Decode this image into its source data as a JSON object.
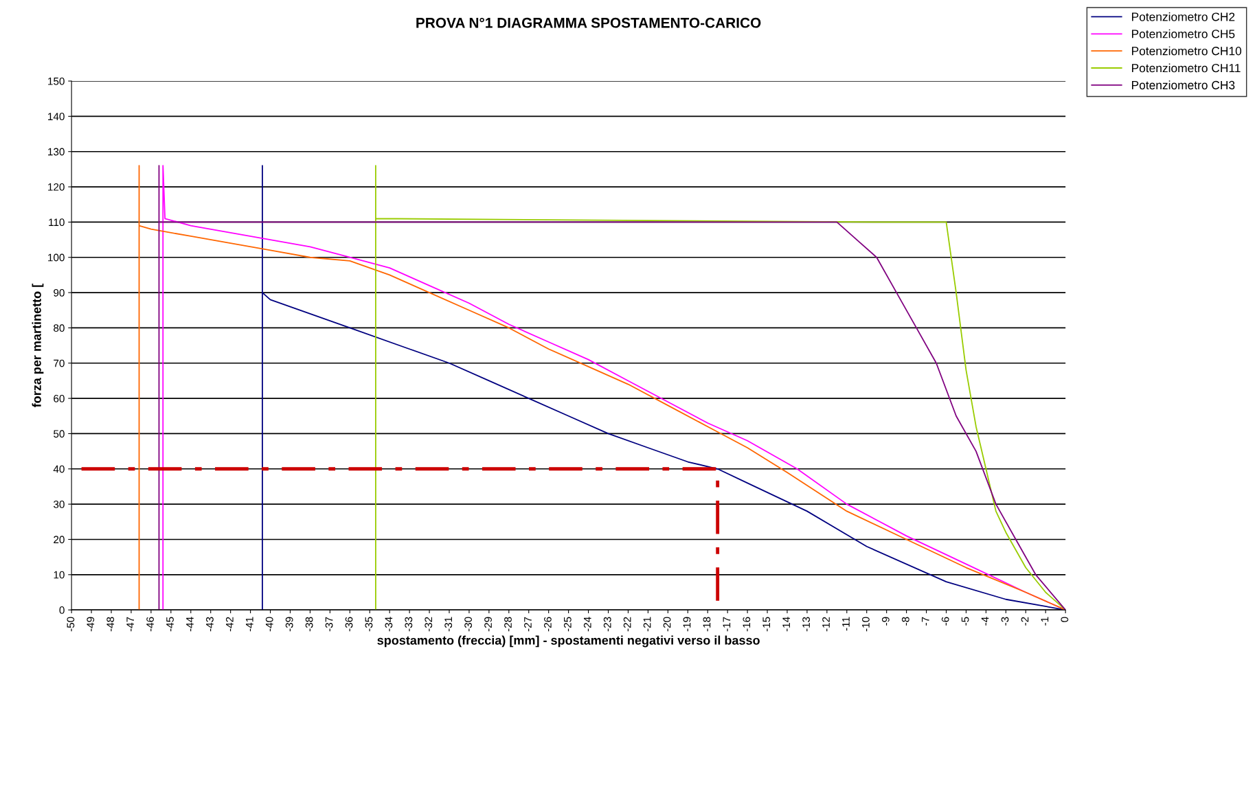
{
  "chart_data": {
    "type": "line",
    "title": "PROVA N°1 DIAGRAMMA SPOSTAMENTO-CARICO",
    "xlabel": "spostamento (freccia) [mm] - spostamenti negativi verso il basso",
    "ylabel": "forza per martinetto [",
    "xlim": [
      -50,
      0
    ],
    "xticks": [
      -50,
      -49,
      -48,
      -47,
      -46,
      -45,
      -44,
      -43,
      -42,
      -41,
      -40,
      -39,
      -38,
      -37,
      -36,
      -35,
      -34,
      -33,
      -32,
      -31,
      -30,
      -29,
      -28,
      -27,
      -26,
      -25,
      -24,
      -23,
      -22,
      -21,
      -20,
      -19,
      -18,
      -17,
      -16,
      -15,
      -14,
      -13,
      -12,
      -11,
      -10,
      -9,
      -8,
      -7,
      -6,
      -5,
      -4,
      -3,
      -2,
      -1,
      0
    ],
    "ylim": [
      0,
      150
    ],
    "yticks": [
      0,
      10,
      20,
      30,
      40,
      50,
      60,
      70,
      80,
      90,
      100,
      110,
      120,
      130,
      140,
      150
    ],
    "grid": "y",
    "legend": "top right",
    "series": [
      {
        "name": "Potenziometro CH2",
        "color": "#000080",
        "x": [
          0,
          -3,
          -6,
          -10,
          -13,
          -16,
          -17.5,
          -19,
          -21,
          -23,
          -25,
          -27,
          -29,
          -31,
          -33,
          -36,
          -38,
          -40,
          -40.4,
          -40.4,
          -40.4
        ],
        "values": [
          0,
          3,
          8,
          18,
          28,
          36,
          40,
          42,
          46,
          50,
          55,
          60,
          65,
          70,
          74,
          80,
          84,
          88,
          90,
          126,
          0
        ]
      },
      {
        "name": "Potenziometro CH5",
        "color": "#ff00ff",
        "x": [
          0,
          -2,
          -5,
          -8,
          -11,
          -13.5,
          -16,
          -18,
          -20,
          -22,
          -24,
          -26,
          -28,
          -30,
          -32,
          -34,
          -36,
          -38,
          -40,
          -42,
          -44,
          -45.3,
          -45.4,
          -45.4
        ],
        "values": [
          0,
          5,
          13,
          21,
          30,
          40,
          48,
          53,
          59,
          65,
          71,
          76,
          81,
          87,
          92,
          97,
          100,
          103,
          105,
          107,
          109,
          111,
          126,
          0
        ]
      },
      {
        "name": "Potenziometro CH10",
        "color": "#ff6600",
        "x": [
          0,
          -2,
          -5,
          -8,
          -11,
          -14,
          -16,
          -18,
          -20,
          -22,
          -24,
          -26,
          -28,
          -30,
          -32,
          -34,
          -36,
          -38,
          -40,
          -42,
          -44,
          -46,
          -46.6,
          -46.6,
          -46.6
        ],
        "values": [
          0,
          5,
          12,
          20,
          28,
          39,
          46,
          52,
          58,
          64,
          69,
          74,
          80,
          85,
          90,
          95,
          99,
          100,
          102,
          104,
          106,
          108,
          109,
          126,
          0
        ]
      },
      {
        "name": "Potenziometro CH11",
        "color": "#99cc00",
        "x": [
          0,
          -1,
          -2,
          -3,
          -3.5,
          -4,
          -4.5,
          -5,
          -5.5,
          -6,
          -9.5,
          -34.7,
          -34.7,
          -34.7
        ],
        "values": [
          0,
          5,
          12,
          22,
          28,
          40,
          52,
          68,
          90,
          110,
          110,
          111,
          126,
          0
        ]
      },
      {
        "name": "Potenziometro CH3",
        "color": "#800080",
        "x": [
          0,
          -1.5,
          -2.5,
          -3.5,
          -4.5,
          -5.5,
          -6.5,
          -7.5,
          -8.5,
          -9.5,
          -10.5,
          -11.5,
          -45.6,
          -45.6,
          -45.6
        ],
        "values": [
          0,
          10,
          20,
          30,
          45,
          55,
          70,
          80,
          90,
          100,
          105,
          110,
          110,
          126,
          0
        ]
      },
      {
        "color": "#cc0000",
        "line_style": "dashed",
        "x": [
          -49.5,
          -17.5,
          -17.5
        ],
        "values": [
          40,
          40,
          0
        ]
      }
    ]
  }
}
